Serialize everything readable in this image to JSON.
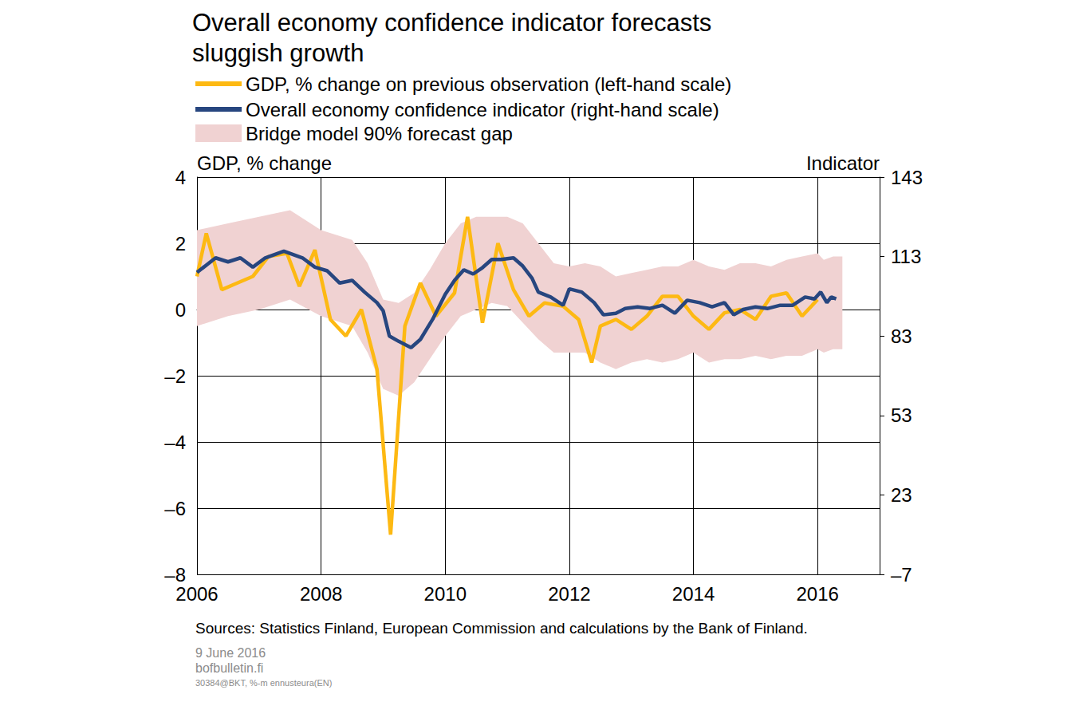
{
  "chart_data": {
    "type": "line",
    "title": "Overall economy confidence indicator forecasts\nsluggish growth",
    "ylabel": "GDP, % change",
    "y2label": "Indicator",
    "source": "Sources: Statistics Finland, European Commission and calculations by the Bank of Finland.",
    "date": "9 June 2016",
    "website": "bofbulletin.fi",
    "code": "30384@BKT, %-m ennusteura(EN)",
    "legend": "upper left",
    "grid": true,
    "xlim": [
      2006,
      2017
    ],
    "xticks": [
      2006,
      2008,
      2010,
      2012,
      2014,
      2016
    ],
    "ylim": [
      -8,
      4
    ],
    "yticks": [
      {
        "value": -8,
        "label": "–8"
      },
      {
        "value": -6,
        "label": "–6"
      },
      {
        "value": -4,
        "label": "–4"
      },
      {
        "value": -2,
        "label": "–2"
      },
      0,
      2,
      4
    ],
    "y2lim": [
      -7,
      143
    ],
    "y2ticks": [
      {
        "value": -7,
        "label": "–7"
      },
      23,
      53,
      83,
      113,
      143
    ],
    "series": [
      {
        "name": "Bridge model 90% forecast gap",
        "type": "band",
        "color": "#f0d2d2",
        "x": [
          2006.0,
          2006.5,
          2007.0,
          2007.5,
          2008.0,
          2008.5,
          2008.75,
          2009.0,
          2009.25,
          2009.5,
          2009.75,
          2010.0,
          2010.25,
          2010.5,
          2010.75,
          2011.0,
          2011.25,
          2011.5,
          2011.75,
          2012.0,
          2012.25,
          2012.5,
          2012.75,
          2013.0,
          2013.25,
          2013.5,
          2013.75,
          2014.0,
          2014.25,
          2014.5,
          2014.75,
          2015.0,
          2015.25,
          2015.5,
          2015.75,
          2016.0,
          2016.1,
          2016.25,
          2016.4
        ],
        "lower": [
          -0.5,
          -0.2,
          0.0,
          0.3,
          -0.2,
          -0.5,
          -1.3,
          -2.4,
          -2.6,
          -2.2,
          -1.5,
          -0.8,
          -0.2,
          0.0,
          0.2,
          0.1,
          -0.4,
          -0.9,
          -1.3,
          -1.3,
          -1.3,
          -1.6,
          -1.8,
          -1.6,
          -1.5,
          -1.6,
          -1.5,
          -1.3,
          -1.6,
          -1.5,
          -1.5,
          -1.4,
          -1.5,
          -1.4,
          -1.4,
          -1.2,
          -1.3,
          -1.2,
          -1.2
        ],
        "upper": [
          2.4,
          2.6,
          2.8,
          3.0,
          2.4,
          2.1,
          1.4,
          0.3,
          0.2,
          0.5,
          1.2,
          2.0,
          2.6,
          2.8,
          2.8,
          2.8,
          2.6,
          2.0,
          1.4,
          1.3,
          1.4,
          1.3,
          1.0,
          1.1,
          1.2,
          1.3,
          1.3,
          1.5,
          1.3,
          1.2,
          1.4,
          1.4,
          1.3,
          1.5,
          1.6,
          1.7,
          1.5,
          1.6,
          1.6
        ]
      },
      {
        "name": "GDP, % change on previous observation (left-hand scale)",
        "type": "line",
        "color": "#fdb913",
        "x": [
          2006.0,
          2006.15,
          2006.4,
          2006.65,
          2006.9,
          2007.15,
          2007.45,
          2007.65,
          2007.9,
          2008.15,
          2008.4,
          2008.65,
          2008.9,
          2009.12,
          2009.35,
          2009.6,
          2009.85,
          2010.15,
          2010.36,
          2010.6,
          2010.85,
          2011.1,
          2011.35,
          2011.6,
          2011.9,
          2012.15,
          2012.36,
          2012.5,
          2012.75,
          2013.0,
          2013.25,
          2013.5,
          2013.75,
          2014.0,
          2014.25,
          2014.5,
          2014.75,
          2015.0,
          2015.25,
          2015.5,
          2015.75,
          2016.0
        ],
        "values": [
          1.0,
          2.3,
          0.6,
          0.8,
          1.0,
          1.6,
          1.7,
          0.7,
          1.8,
          -0.3,
          -0.8,
          0.0,
          -1.8,
          -6.8,
          -0.5,
          0.8,
          -0.2,
          0.5,
          2.8,
          -0.4,
          2.0,
          0.6,
          -0.2,
          0.2,
          0.1,
          -0.3,
          -1.6,
          -0.5,
          -0.3,
          -0.6,
          -0.2,
          0.4,
          0.4,
          -0.2,
          -0.6,
          -0.1,
          0.0,
          -0.3,
          0.4,
          0.5,
          -0.2,
          0.3
        ]
      },
      {
        "name": "Overall economy confidence indicator (right-hand scale)",
        "type": "line",
        "color": "#27467f",
        "axis": "y2",
        "x": [
          2006.0,
          2006.3,
          2006.5,
          2006.7,
          2006.9,
          2007.1,
          2007.4,
          2007.7,
          2007.9,
          2008.1,
          2008.3,
          2008.5,
          2008.7,
          2008.9,
          2009.0,
          2009.1,
          2009.25,
          2009.45,
          2009.6,
          2009.8,
          2010.0,
          2010.15,
          2010.3,
          2010.45,
          2010.6,
          2010.75,
          2010.9,
          2011.1,
          2011.25,
          2011.4,
          2011.5,
          2011.7,
          2011.9,
          2012.0,
          2012.2,
          2012.4,
          2012.55,
          2012.75,
          2012.9,
          2013.1,
          2013.3,
          2013.5,
          2013.7,
          2013.9,
          2014.1,
          2014.3,
          2014.5,
          2014.65,
          2014.8,
          2015.0,
          2015.2,
          2015.4,
          2015.6,
          2015.8,
          2015.95,
          2016.05,
          2016.15,
          2016.22,
          2016.3
        ],
        "values": [
          107,
          112.5,
          111,
          112.5,
          109,
          112.5,
          115,
          112.5,
          109,
          107.6,
          103,
          104,
          99.6,
          95.6,
          92.5,
          83,
          81,
          78.6,
          81.7,
          89.4,
          98.7,
          104,
          108,
          106.4,
          108.8,
          111.9,
          111.9,
          112.5,
          109.4,
          104.8,
          99.6,
          97.7,
          94.6,
          100.8,
          99.6,
          95.6,
          91,
          91.6,
          93.4,
          94,
          93.4,
          94.6,
          91.6,
          96.5,
          95.6,
          94,
          95.6,
          91,
          93,
          94,
          93.4,
          94.6,
          94.6,
          97.7,
          97,
          99.6,
          95.6,
          97.7,
          97
        ]
      }
    ]
  }
}
